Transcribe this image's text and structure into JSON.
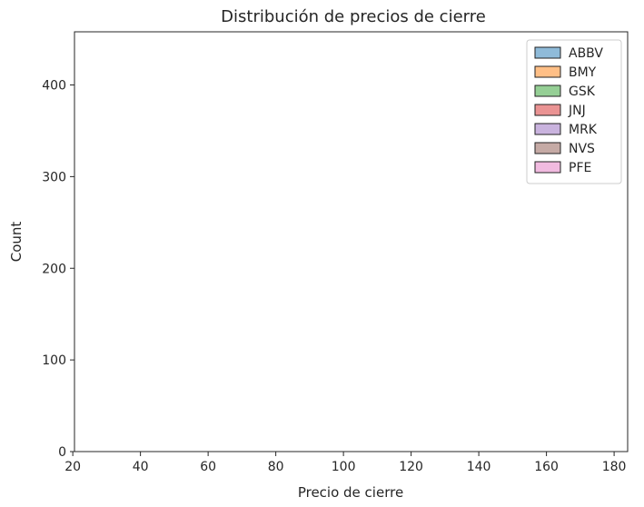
{
  "chart_data": {
    "type": "bar",
    "subtype": "histogram-with-kde",
    "title": "Distribución de precios de cierre",
    "xlabel": "Precio de cierre",
    "ylabel": "Count",
    "xlim": [
      20.5,
      184
    ],
    "ylim": [
      0,
      458
    ],
    "xticks": [
      20,
      40,
      60,
      80,
      100,
      120,
      140,
      160,
      180
    ],
    "yticks": [
      0,
      100,
      200,
      300,
      400
    ],
    "bin_edges": [
      24,
      28.25,
      32.5,
      36.75,
      41,
      45.25,
      49.5,
      53.75,
      58,
      62.25,
      66.5,
      70.75,
      75,
      79.25,
      83.5,
      87.75,
      92,
      96.25,
      100.5,
      104.75,
      109,
      113.25,
      117.5,
      121.75,
      126,
      130.25,
      134.5,
      138.75,
      143,
      147.25,
      151.5,
      155.75,
      160,
      164.25,
      168.5,
      172.75,
      177,
      181.25
    ],
    "legend": {
      "position": "top-right",
      "entries": [
        "ABBV",
        "BMY",
        "GSK",
        "JNJ",
        "MRK",
        "NVS",
        "PFE"
      ]
    },
    "series": [
      {
        "name": "ABBV",
        "color": "#1f77b4",
        "counts": [
          0,
          0,
          0,
          0,
          0,
          0,
          0,
          0,
          0,
          0,
          0,
          0,
          0,
          0,
          0,
          0,
          0,
          0,
          0,
          0,
          0,
          0,
          0,
          0,
          0,
          0,
          0,
          0,
          0,
          0,
          0,
          0,
          0,
          0,
          0,
          0,
          0
        ]
      },
      {
        "name": "BMY",
        "color": "#ff7f0e",
        "counts": [
          0,
          0,
          0,
          0,
          0,
          0,
          0,
          0,
          0,
          0,
          0,
          0,
          0,
          0,
          0,
          0,
          0,
          0,
          0,
          0,
          0,
          0,
          0,
          0,
          0,
          0,
          0,
          0,
          0,
          0,
          0,
          0,
          0,
          0,
          0,
          0,
          0
        ]
      },
      {
        "name": "GSK",
        "color": "#2ca02c",
        "counts": [
          0,
          0,
          0,
          0,
          0,
          0,
          0,
          0,
          0,
          0,
          0,
          0,
          0,
          0,
          0,
          0,
          0,
          0,
          0,
          0,
          0,
          0,
          0,
          0,
          0,
          0,
          0,
          0,
          0,
          0,
          0,
          0,
          0,
          0,
          0,
          0,
          0
        ]
      },
      {
        "name": "JNJ",
        "color": "#d62728",
        "counts": [
          0,
          0,
          0,
          0,
          0,
          0,
          0,
          0,
          0,
          0,
          0,
          0,
          0,
          0,
          0,
          0,
          0,
          0,
          0,
          0,
          0,
          0,
          0,
          0,
          0,
          0,
          0,
          0,
          0,
          0,
          0,
          0,
          0,
          0,
          0,
          0,
          0
        ]
      },
      {
        "name": "MRK",
        "color": "#9467bd",
        "counts": [
          0,
          0,
          0,
          0,
          0,
          0,
          0,
          0,
          0,
          0,
          0,
          0,
          0,
          0,
          0,
          0,
          0,
          0,
          0,
          0,
          0,
          0,
          0,
          0,
          0,
          0,
          0,
          0,
          0,
          0,
          0,
          0,
          0,
          0,
          0,
          0,
          0
        ]
      },
      {
        "name": "NVS",
        "color": "#8c564b",
        "counts": [
          0,
          0,
          0,
          0,
          0,
          0,
          0,
          0,
          0,
          0,
          0,
          0,
          0,
          0,
          0,
          0,
          0,
          0,
          0,
          0,
          0,
          0,
          0,
          0,
          0,
          0,
          0,
          0,
          0,
          0,
          0,
          0,
          0,
          0,
          0,
          0,
          0
        ]
      },
      {
        "name": "PFE",
        "color": "#e377c2",
        "counts": [
          0,
          0,
          0,
          0,
          0,
          0,
          0,
          0,
          0,
          0,
          0,
          0,
          0,
          0,
          0,
          0,
          0,
          0,
          0,
          0,
          0,
          0,
          0,
          0,
          0,
          0,
          0,
          0,
          0,
          0,
          0,
          0,
          0,
          0,
          0,
          0,
          0
        ]
      }
    ]
  }
}
